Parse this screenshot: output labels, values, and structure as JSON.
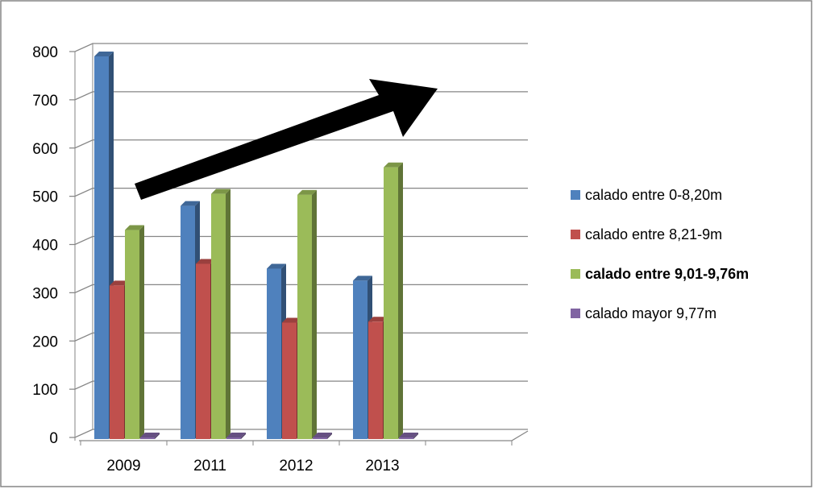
{
  "chart_data": {
    "type": "bar3d",
    "categories": [
      "2009",
      "2011",
      "2012",
      "2013",
      null
    ],
    "series": [
      {
        "name": "calado entre 0-8,20m",
        "color": "#4f81bd",
        "values": [
          790,
          480,
          350,
          325,
          null
        ]
      },
      {
        "name": "calado entre 8,21-9m",
        "color": "#c0504d",
        "values": [
          315,
          360,
          238,
          240,
          null
        ]
      },
      {
        "name": "calado entre 9,01-9,76m",
        "color": "#9bbb59",
        "values": [
          430,
          505,
          503,
          560,
          null
        ]
      },
      {
        "name": "calado mayor 9,77m",
        "color": "#8064a2",
        "values": [
          0,
          0,
          0,
          0,
          null
        ]
      }
    ],
    "ylim": [
      0,
      800
    ],
    "yticks": [
      0,
      100,
      200,
      300,
      400,
      500,
      600,
      700,
      800
    ],
    "grid": true,
    "legend": "right"
  }
}
